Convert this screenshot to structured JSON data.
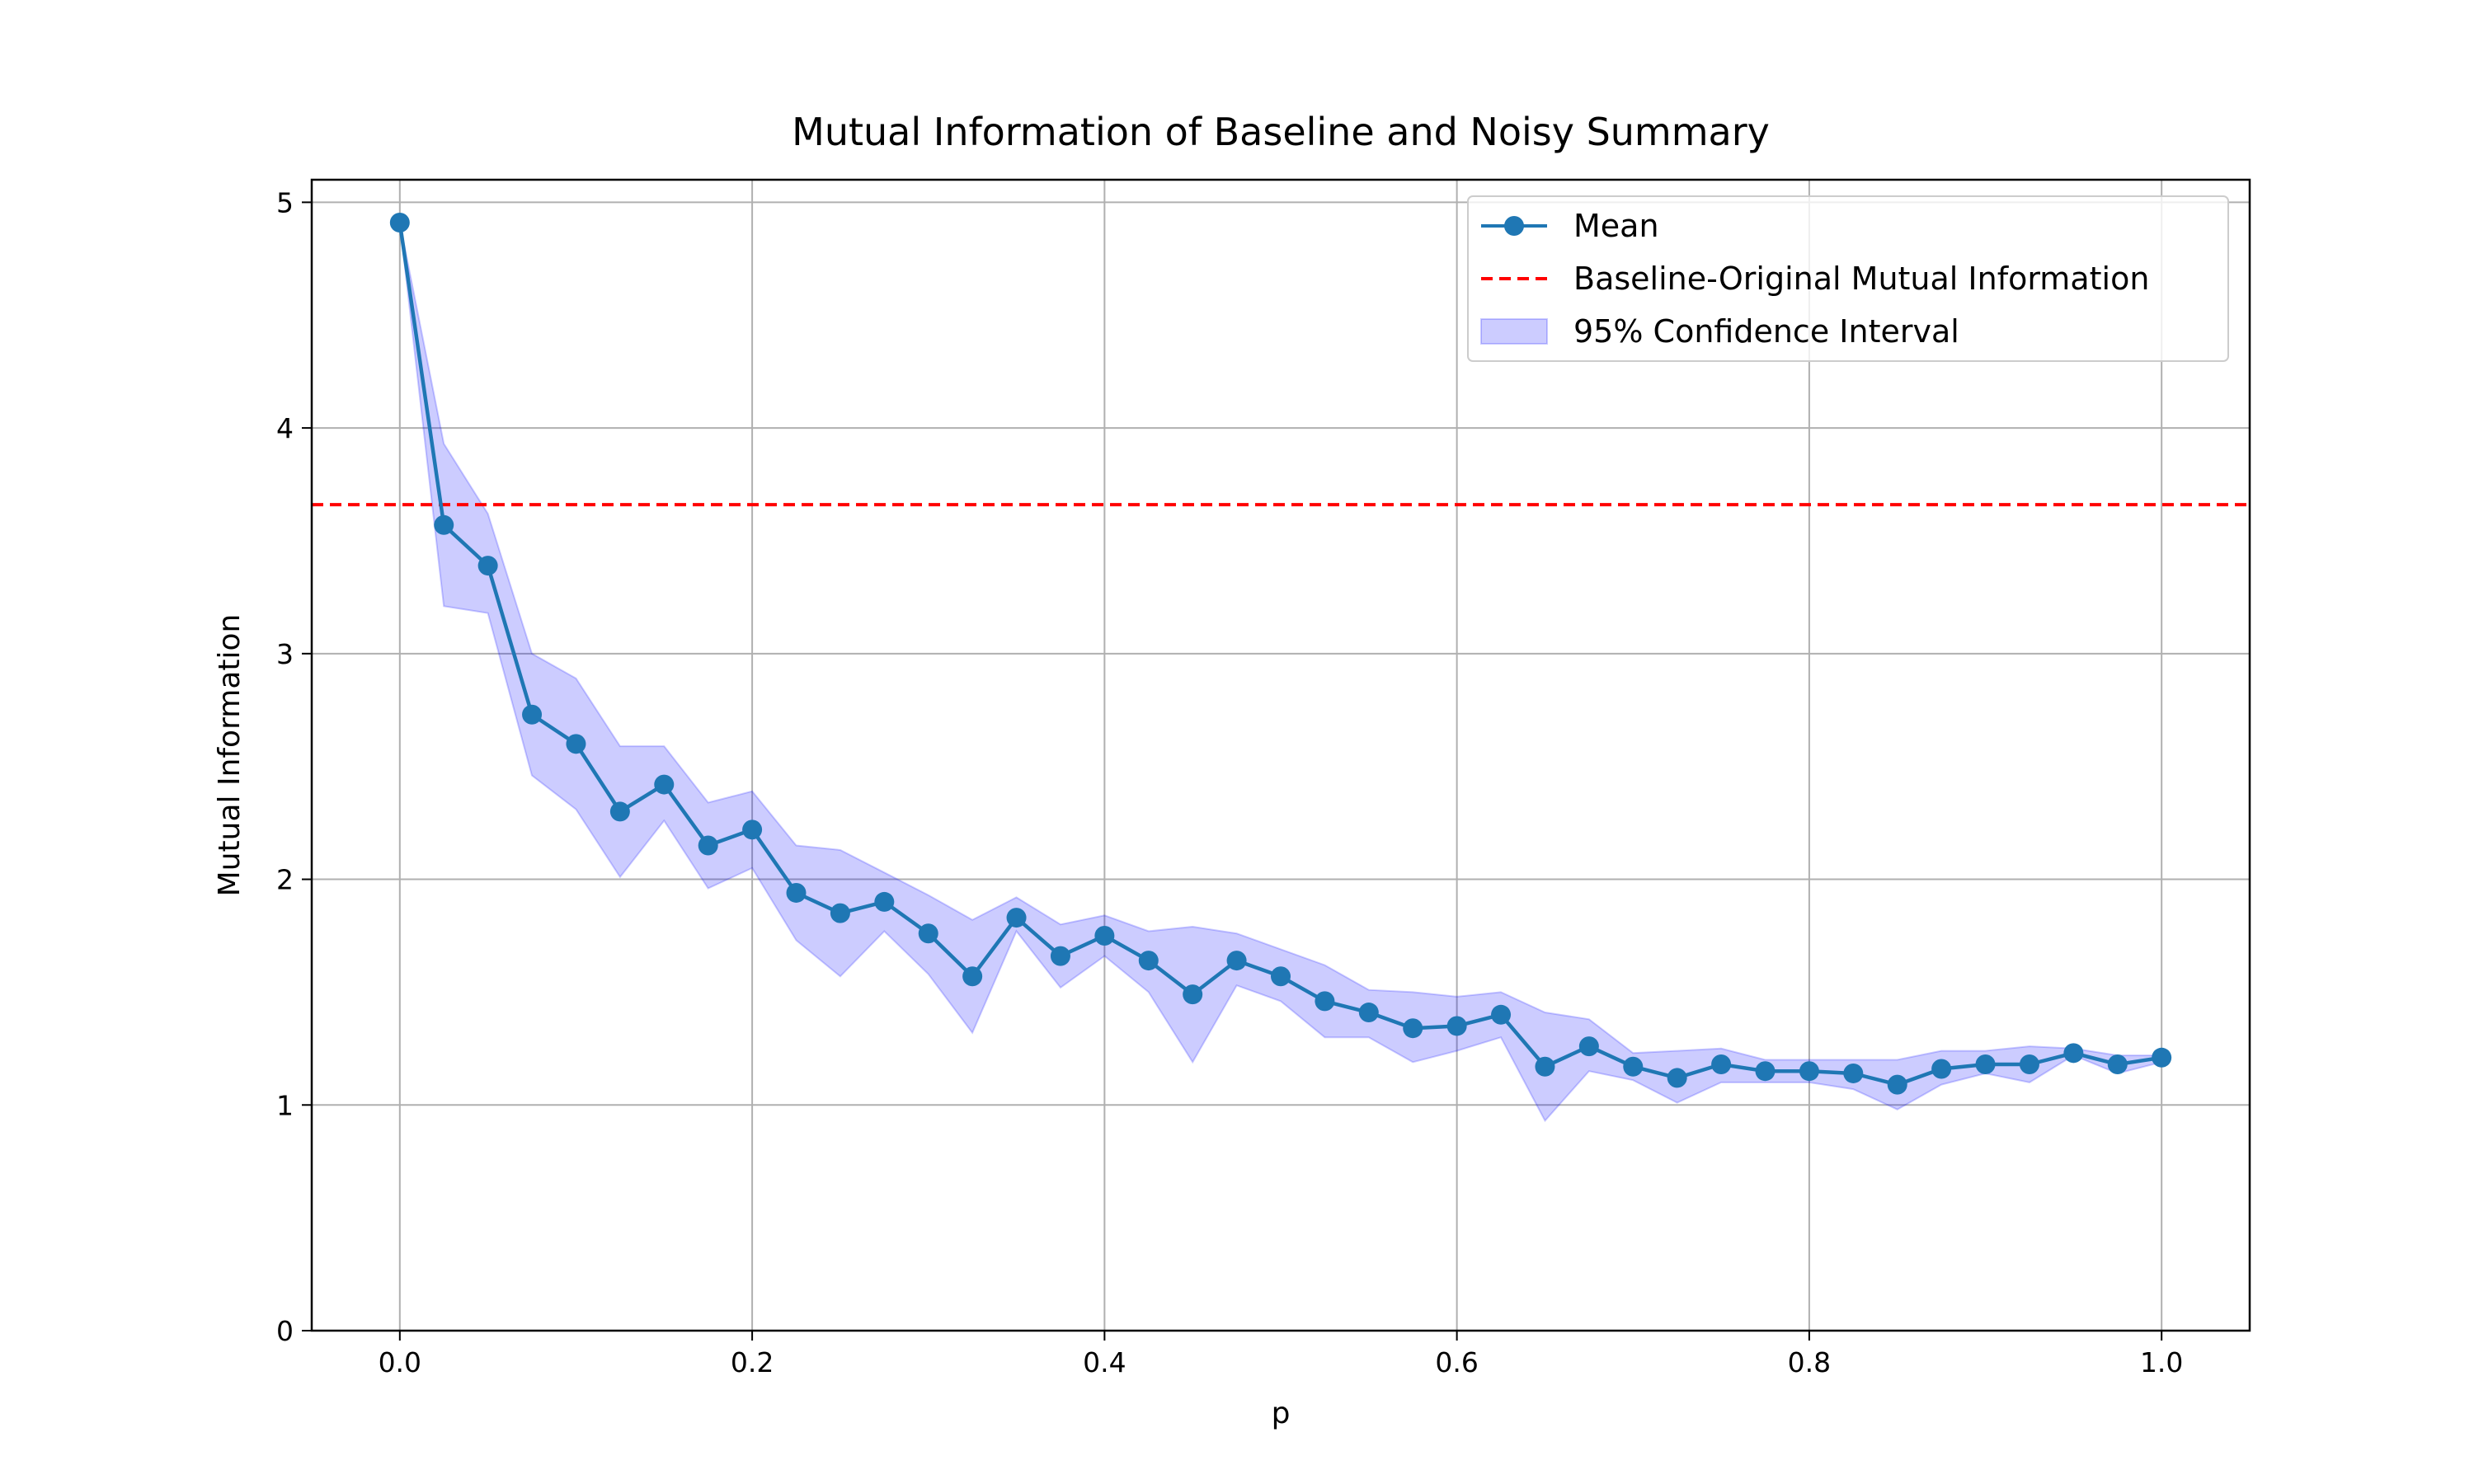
{
  "chart_data": {
    "type": "line",
    "title": "Mutual Information of Baseline and Noisy Summary",
    "xlabel": "p",
    "ylabel": "Mutual Information",
    "xlim": [
      -0.05,
      1.05
    ],
    "ylim": [
      0,
      5.1
    ],
    "xticks": [
      0.0,
      0.2,
      0.4,
      0.6,
      0.8,
      1.0
    ],
    "xtick_labels": [
      "0.0",
      "0.2",
      "0.4",
      "0.6",
      "0.8",
      "1.0"
    ],
    "yticks": [
      0,
      1,
      2,
      3,
      4,
      5
    ],
    "ytick_labels": [
      "0",
      "1",
      "2",
      "3",
      "4",
      "5"
    ],
    "grid": true,
    "legend_position": "top-right",
    "x": [
      0.0,
      0.025,
      0.05,
      0.075,
      0.1,
      0.125,
      0.15,
      0.175,
      0.2,
      0.225,
      0.25,
      0.275,
      0.3,
      0.325,
      0.35,
      0.375,
      0.4,
      0.425,
      0.45,
      0.475,
      0.5,
      0.525,
      0.55,
      0.575,
      0.6,
      0.625,
      0.65,
      0.675,
      0.7,
      0.725,
      0.75,
      0.775,
      0.8,
      0.825,
      0.85,
      0.875,
      0.9,
      0.925,
      0.95,
      0.975,
      1.0
    ],
    "series": [
      {
        "name": "Mean",
        "color": "#1f77b4",
        "values": [
          4.91,
          3.57,
          3.39,
          2.73,
          2.6,
          2.3,
          2.42,
          2.15,
          2.22,
          1.94,
          1.85,
          1.9,
          1.76,
          1.57,
          1.83,
          1.66,
          1.75,
          1.64,
          1.49,
          1.64,
          1.57,
          1.46,
          1.41,
          1.34,
          1.35,
          1.4,
          1.17,
          1.26,
          1.17,
          1.12,
          1.18,
          1.15,
          1.15,
          1.14,
          1.09,
          1.16,
          1.18,
          1.18,
          1.23,
          1.18,
          1.21
        ]
      }
    ],
    "confidence_interval": {
      "name": "95% Confidence Interval",
      "color": "#0000ff",
      "lower": [
        4.91,
        3.21,
        3.18,
        2.46,
        2.31,
        2.01,
        2.26,
        1.96,
        2.05,
        1.73,
        1.57,
        1.77,
        1.58,
        1.32,
        1.77,
        1.52,
        1.66,
        1.5,
        1.19,
        1.53,
        1.46,
        1.3,
        1.3,
        1.19,
        1.24,
        1.3,
        0.93,
        1.15,
        1.11,
        1.01,
        1.1,
        1.1,
        1.1,
        1.07,
        0.98,
        1.09,
        1.14,
        1.1,
        1.22,
        1.14,
        1.19
      ],
      "upper": [
        4.91,
        3.93,
        3.62,
        3.0,
        2.89,
        2.59,
        2.59,
        2.34,
        2.39,
        2.15,
        2.13,
        2.03,
        1.93,
        1.82,
        1.92,
        1.8,
        1.84,
        1.77,
        1.79,
        1.76,
        1.69,
        1.62,
        1.51,
        1.5,
        1.48,
        1.5,
        1.41,
        1.38,
        1.23,
        1.24,
        1.25,
        1.2,
        1.2,
        1.2,
        1.2,
        1.24,
        1.24,
        1.26,
        1.25,
        1.22,
        1.22
      ]
    },
    "reference_line": {
      "name": "Baseline-Original Mutual Information",
      "value": 3.66,
      "color": "#ff0000",
      "style": "dashed"
    }
  }
}
